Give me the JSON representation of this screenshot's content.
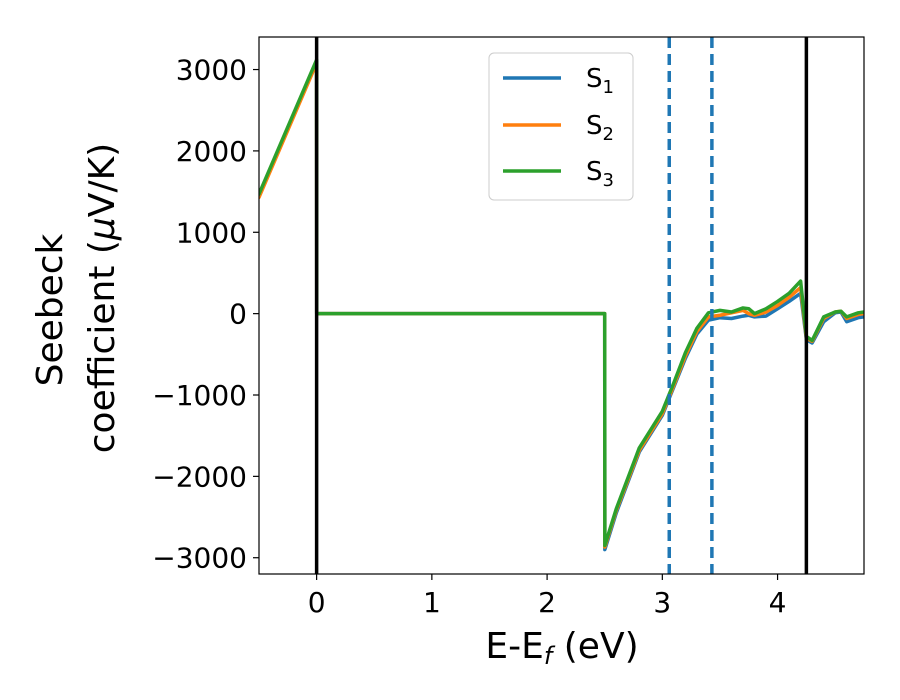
{
  "chart_data": {
    "type": "line",
    "title": "",
    "xlabel": {
      "main": "E-E",
      "sub": "f",
      "unit": " (eV)"
    },
    "ylabel": {
      "line1": "Seebeck",
      "line2_pre": "coefficient  (",
      "mu": "μ",
      "line2_post": "V/K)"
    },
    "xlim": [
      -0.5,
      4.75
    ],
    "ylim": [
      -3200,
      3400
    ],
    "xticks": [
      0,
      1,
      2,
      3,
      4
    ],
    "xtick_labels": [
      "0",
      "1",
      "2",
      "3",
      "4"
    ],
    "yticks": [
      -3000,
      -2000,
      -1000,
      0,
      1000,
      2000,
      3000
    ],
    "ytick_labels": [
      "−3000",
      "−2000",
      "−1000",
      "0",
      "1000",
      "2000",
      "3000"
    ],
    "grid": false,
    "legend_position": "top-center",
    "vlines": [
      {
        "x": 0,
        "style": "solid",
        "color": "#000000"
      },
      {
        "x": 4.25,
        "style": "solid",
        "color": "#000000"
      },
      {
        "x": 3.06,
        "style": "dashed",
        "color": "#1f77b4"
      },
      {
        "x": 3.43,
        "style": "dashed",
        "color": "#1f77b4"
      }
    ],
    "series": [
      {
        "name": "S1",
        "legend_main": "S",
        "legend_sub": "1",
        "color": "#1f77b4",
        "x": [
          -0.5,
          0,
          0.001,
          2.5,
          2.501,
          2.6,
          2.8,
          3.0,
          3.1,
          3.2,
          3.3,
          3.4,
          3.5,
          3.6,
          3.7,
          3.75,
          3.8,
          3.9,
          4.0,
          4.1,
          4.2,
          4.25,
          4.3,
          4.4,
          4.5,
          4.55,
          4.6,
          4.7,
          4.75
        ],
        "y": [
          1450,
          3100,
          0,
          0,
          -2900,
          -2450,
          -1700,
          -1250,
          -900,
          -550,
          -250,
          -80,
          -50,
          -60,
          -30,
          -20,
          -40,
          -30,
          60,
          150,
          250,
          -320,
          -360,
          -100,
          10,
          20,
          -100,
          -50,
          -40
        ]
      },
      {
        "name": "S2",
        "legend_main": "S",
        "legend_sub": "2",
        "color": "#ff7f0e",
        "x": [
          -0.5,
          0,
          0.001,
          2.5,
          2.501,
          2.6,
          2.8,
          3.0,
          3.1,
          3.2,
          3.3,
          3.4,
          3.5,
          3.6,
          3.7,
          3.75,
          3.8,
          3.9,
          4.0,
          4.1,
          4.2,
          4.25,
          4.3,
          4.4,
          4.5,
          4.55,
          4.6,
          4.7,
          4.75
        ],
        "y": [
          1430,
          3080,
          0,
          0,
          -2870,
          -2420,
          -1680,
          -1230,
          -880,
          -520,
          -220,
          -40,
          -20,
          10,
          40,
          0,
          -20,
          20,
          100,
          200,
          320,
          -300,
          -340,
          -60,
          20,
          30,
          -60,
          -10,
          0
        ]
      },
      {
        "name": "S3",
        "legend_main": "S",
        "legend_sub": "3",
        "color": "#2ca02c",
        "x": [
          -0.5,
          0,
          0.001,
          2.5,
          2.501,
          2.6,
          2.8,
          3.0,
          3.1,
          3.2,
          3.3,
          3.4,
          3.5,
          3.6,
          3.7,
          3.75,
          3.8,
          3.9,
          4.0,
          4.1,
          4.2,
          4.25,
          4.3,
          4.4,
          4.5,
          4.55,
          4.6,
          4.7,
          4.75
        ],
        "y": [
          1470,
          3120,
          0,
          0,
          -2850,
          -2400,
          -1650,
          -1200,
          -850,
          -480,
          -180,
          10,
          40,
          20,
          70,
          60,
          0,
          60,
          150,
          250,
          400,
          -280,
          -330,
          -40,
          20,
          30,
          -40,
          10,
          20
        ]
      }
    ]
  }
}
